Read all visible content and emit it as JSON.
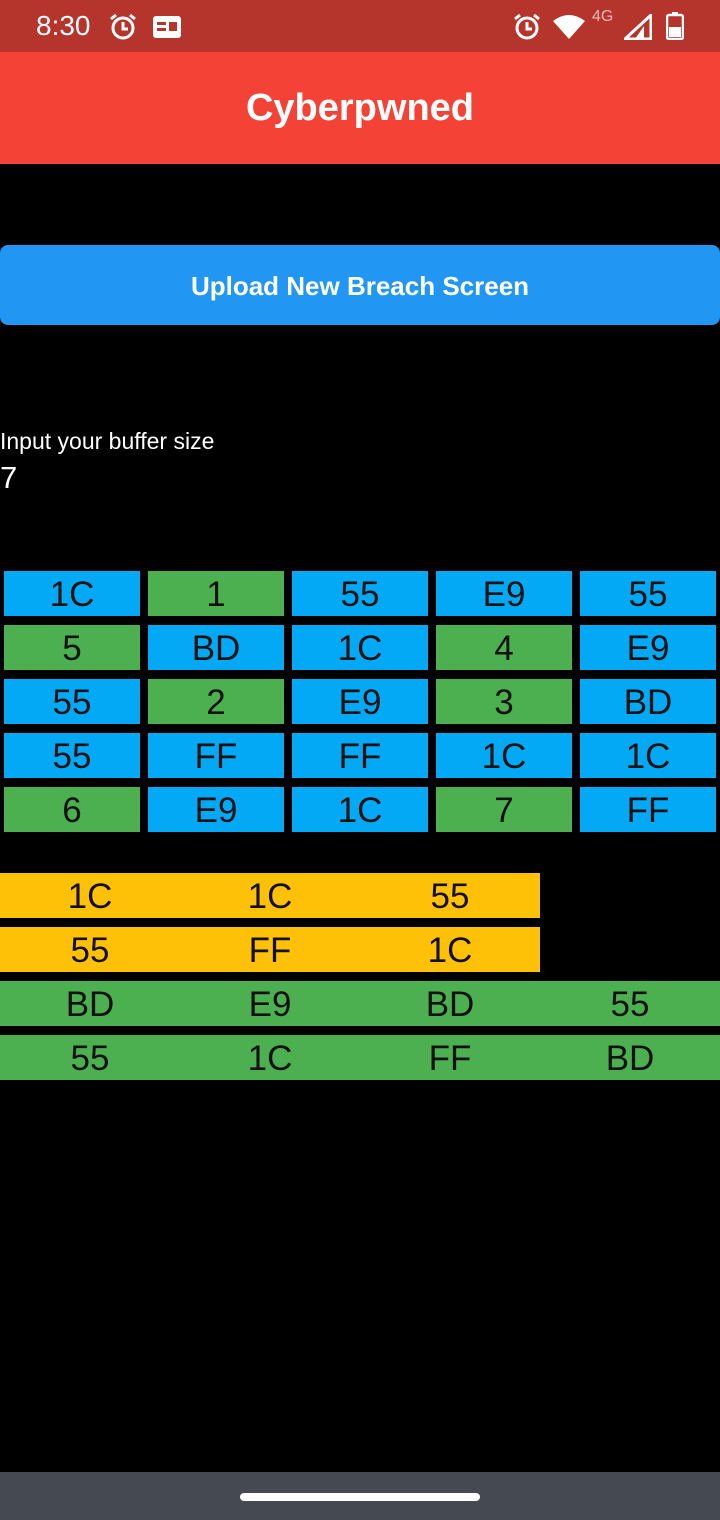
{
  "status_bar": {
    "time": "8:30",
    "network": "4G",
    "icons_left": [
      "alarm-icon",
      "id-card-icon"
    ],
    "icons_right": [
      "alarm-icon",
      "wifi-icon",
      "cell-signal-icon",
      "battery-icon"
    ]
  },
  "app": {
    "title": "Cyberpwned",
    "header_color": "#f44336"
  },
  "upload_button": {
    "label": "Upload New Breach Screen",
    "color": "#2196f3"
  },
  "buffer": {
    "label": "Input your buffer size",
    "value": "7"
  },
  "code_matrix": {
    "rows": [
      [
        {
          "v": "1C",
          "c": "blue"
        },
        {
          "v": "1",
          "c": "green"
        },
        {
          "v": "55",
          "c": "blue"
        },
        {
          "v": "E9",
          "c": "blue"
        },
        {
          "v": "55",
          "c": "blue"
        }
      ],
      [
        {
          "v": "5",
          "c": "green"
        },
        {
          "v": "BD",
          "c": "blue"
        },
        {
          "v": "1C",
          "c": "blue"
        },
        {
          "v": "4",
          "c": "green"
        },
        {
          "v": "E9",
          "c": "blue"
        }
      ],
      [
        {
          "v": "55",
          "c": "blue"
        },
        {
          "v": "2",
          "c": "green"
        },
        {
          "v": "E9",
          "c": "blue"
        },
        {
          "v": "3",
          "c": "green"
        },
        {
          "v": "BD",
          "c": "blue"
        }
      ],
      [
        {
          "v": "55",
          "c": "blue"
        },
        {
          "v": "FF",
          "c": "blue"
        },
        {
          "v": "FF",
          "c": "blue"
        },
        {
          "v": "1C",
          "c": "blue"
        },
        {
          "v": "1C",
          "c": "blue"
        }
      ],
      [
        {
          "v": "6",
          "c": "green"
        },
        {
          "v": "E9",
          "c": "blue"
        },
        {
          "v": "1C",
          "c": "blue"
        },
        {
          "v": "7",
          "c": "green"
        },
        {
          "v": "FF",
          "c": "blue"
        }
      ]
    ],
    "colors": {
      "blue": "#03a9f4",
      "green": "#4caf50"
    }
  },
  "sequences": [
    {
      "color": "yellow",
      "values": [
        "1C",
        "1C",
        "55"
      ]
    },
    {
      "color": "yellow",
      "values": [
        "55",
        "FF",
        "1C"
      ]
    },
    {
      "color": "green",
      "values": [
        "BD",
        "E9",
        "BD",
        "55"
      ]
    },
    {
      "color": "green",
      "values": [
        "55",
        "1C",
        "FF",
        "BD"
      ]
    }
  ],
  "sequence_colors": {
    "yellow": "#ffc107",
    "green": "#4caf50"
  }
}
